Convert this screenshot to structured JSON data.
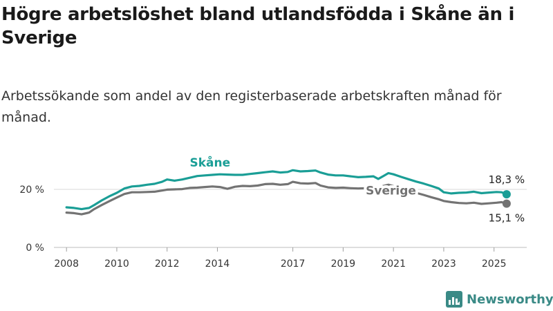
{
  "title": "Högre arbetslöshet bland utlandsfödda i Skåne än i Sverige",
  "subtitle": "Arbetssökande som andel av den registerbaserade arbetskraften månad för månad.",
  "brand": "Newsworthy",
  "colors": {
    "skane": "#1a9e96",
    "sverige": "#737373",
    "grid": "#d9d9d9",
    "brand": "#3a8a86"
  },
  "chart_data": {
    "type": "line",
    "x_unit": "year",
    "xlim": [
      2007.5,
      2026.3
    ],
    "ylim": [
      0,
      30
    ],
    "x_ticks": [
      2008,
      2010,
      2012,
      2014,
      2017,
      2019,
      2021,
      2023,
      2025
    ],
    "x_tick_labels": [
      "2008",
      "2010",
      "2012",
      "2014",
      "2017",
      "2019",
      "2021",
      "2023",
      "2025"
    ],
    "y_ticks": [
      0,
      20
    ],
    "y_tick_labels": [
      "0 %",
      "20 %"
    ],
    "grid": true,
    "series": [
      {
        "name": "Skåne",
        "color": "#1a9e96",
        "end_label": "18,3 %",
        "points": [
          [
            2008.0,
            13.8
          ],
          [
            2008.3,
            13.6
          ],
          [
            2008.6,
            13.2
          ],
          [
            2008.9,
            13.6
          ],
          [
            2009.1,
            14.6
          ],
          [
            2009.4,
            16.2
          ],
          [
            2009.7,
            17.6
          ],
          [
            2010.0,
            18.8
          ],
          [
            2010.3,
            20.3
          ],
          [
            2010.6,
            21.0
          ],
          [
            2010.9,
            21.2
          ],
          [
            2011.2,
            21.6
          ],
          [
            2011.5,
            21.9
          ],
          [
            2011.8,
            22.6
          ],
          [
            2012.0,
            23.4
          ],
          [
            2012.3,
            23.0
          ],
          [
            2012.6,
            23.4
          ],
          [
            2012.9,
            24.0
          ],
          [
            2013.2,
            24.6
          ],
          [
            2013.5,
            24.8
          ],
          [
            2013.8,
            25.0
          ],
          [
            2014.1,
            25.2
          ],
          [
            2014.4,
            25.1
          ],
          [
            2014.7,
            25.0
          ],
          [
            2015.0,
            25.0
          ],
          [
            2015.3,
            25.3
          ],
          [
            2015.6,
            25.6
          ],
          [
            2015.9,
            25.9
          ],
          [
            2016.2,
            26.2
          ],
          [
            2016.5,
            25.8
          ],
          [
            2016.8,
            26.0
          ],
          [
            2017.0,
            26.6
          ],
          [
            2017.3,
            26.2
          ],
          [
            2017.6,
            26.3
          ],
          [
            2017.9,
            26.5
          ],
          [
            2018.1,
            25.8
          ],
          [
            2018.4,
            25.1
          ],
          [
            2018.7,
            24.8
          ],
          [
            2019.0,
            24.8
          ],
          [
            2019.3,
            24.5
          ],
          [
            2019.6,
            24.2
          ],
          [
            2019.9,
            24.3
          ],
          [
            2020.2,
            24.5
          ],
          [
            2020.4,
            23.6
          ],
          [
            2020.6,
            24.6
          ],
          [
            2020.8,
            25.6
          ],
          [
            2021.0,
            25.2
          ],
          [
            2021.3,
            24.3
          ],
          [
            2021.6,
            23.5
          ],
          [
            2021.9,
            22.7
          ],
          [
            2022.2,
            22.0
          ],
          [
            2022.5,
            21.2
          ],
          [
            2022.8,
            20.3
          ],
          [
            2023.0,
            19.0
          ],
          [
            2023.3,
            18.6
          ],
          [
            2023.6,
            18.8
          ],
          [
            2023.9,
            18.9
          ],
          [
            2024.2,
            19.2
          ],
          [
            2024.5,
            18.7
          ],
          [
            2024.8,
            18.9
          ],
          [
            2025.1,
            19.1
          ],
          [
            2025.3,
            19.0
          ],
          [
            2025.5,
            18.3
          ]
        ]
      },
      {
        "name": "Sverige",
        "color": "#737373",
        "end_label": "15,1 %",
        "points": [
          [
            2008.0,
            12.0
          ],
          [
            2008.3,
            11.8
          ],
          [
            2008.6,
            11.4
          ],
          [
            2008.9,
            12.0
          ],
          [
            2009.1,
            13.2
          ],
          [
            2009.4,
            14.6
          ],
          [
            2009.7,
            15.9
          ],
          [
            2010.0,
            17.2
          ],
          [
            2010.3,
            18.4
          ],
          [
            2010.6,
            19.0
          ],
          [
            2010.9,
            19.0
          ],
          [
            2011.2,
            19.1
          ],
          [
            2011.5,
            19.2
          ],
          [
            2011.8,
            19.6
          ],
          [
            2012.0,
            19.9
          ],
          [
            2012.3,
            20.0
          ],
          [
            2012.6,
            20.1
          ],
          [
            2012.9,
            20.5
          ],
          [
            2013.2,
            20.6
          ],
          [
            2013.5,
            20.8
          ],
          [
            2013.8,
            21.0
          ],
          [
            2014.1,
            20.8
          ],
          [
            2014.4,
            20.2
          ],
          [
            2014.7,
            20.9
          ],
          [
            2015.0,
            21.2
          ],
          [
            2015.3,
            21.1
          ],
          [
            2015.6,
            21.3
          ],
          [
            2015.9,
            21.8
          ],
          [
            2016.2,
            21.9
          ],
          [
            2016.5,
            21.6
          ],
          [
            2016.8,
            21.8
          ],
          [
            2017.0,
            22.6
          ],
          [
            2017.3,
            22.1
          ],
          [
            2017.6,
            22.0
          ],
          [
            2017.9,
            22.2
          ],
          [
            2018.1,
            21.3
          ],
          [
            2018.4,
            20.7
          ],
          [
            2018.7,
            20.5
          ],
          [
            2019.0,
            20.6
          ],
          [
            2019.3,
            20.4
          ],
          [
            2019.6,
            20.3
          ],
          [
            2019.9,
            20.4
          ],
          [
            2020.2,
            20.6
          ],
          [
            2020.4,
            20.4
          ],
          [
            2020.6,
            21.2
          ],
          [
            2020.8,
            21.6
          ],
          [
            2021.0,
            21.1
          ],
          [
            2021.3,
            20.3
          ],
          [
            2021.6,
            19.6
          ],
          [
            2021.9,
            18.8
          ],
          [
            2022.2,
            18.1
          ],
          [
            2022.5,
            17.3
          ],
          [
            2022.8,
            16.6
          ],
          [
            2023.0,
            16.0
          ],
          [
            2023.3,
            15.6
          ],
          [
            2023.6,
            15.3
          ],
          [
            2023.9,
            15.2
          ],
          [
            2024.2,
            15.4
          ],
          [
            2024.5,
            15.0
          ],
          [
            2024.8,
            15.2
          ],
          [
            2025.1,
            15.4
          ],
          [
            2025.3,
            15.6
          ],
          [
            2025.5,
            15.1
          ]
        ]
      }
    ]
  }
}
